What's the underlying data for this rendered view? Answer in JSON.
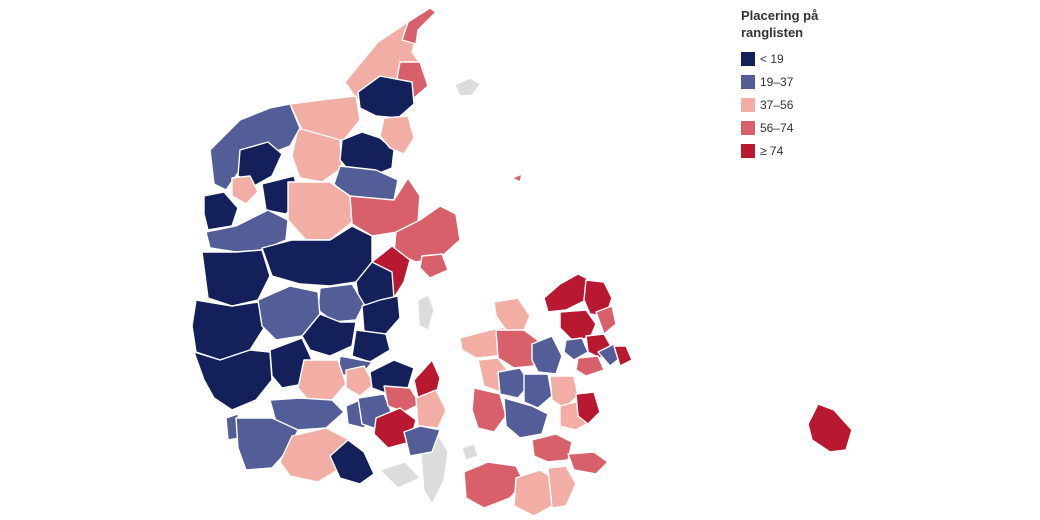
{
  "legend": {
    "title": "Placering på ranglisten",
    "items": [
      {
        "label": "< 19",
        "color": "#13205a"
      },
      {
        "label": "19–37",
        "color": "#535e98"
      },
      {
        "label": "37–56",
        "color": "#f2aea4"
      },
      {
        "label": "56–74",
        "color": "#d7606a"
      },
      {
        "label": "≥ 74",
        "color": "#b81830"
      }
    ]
  }
}
